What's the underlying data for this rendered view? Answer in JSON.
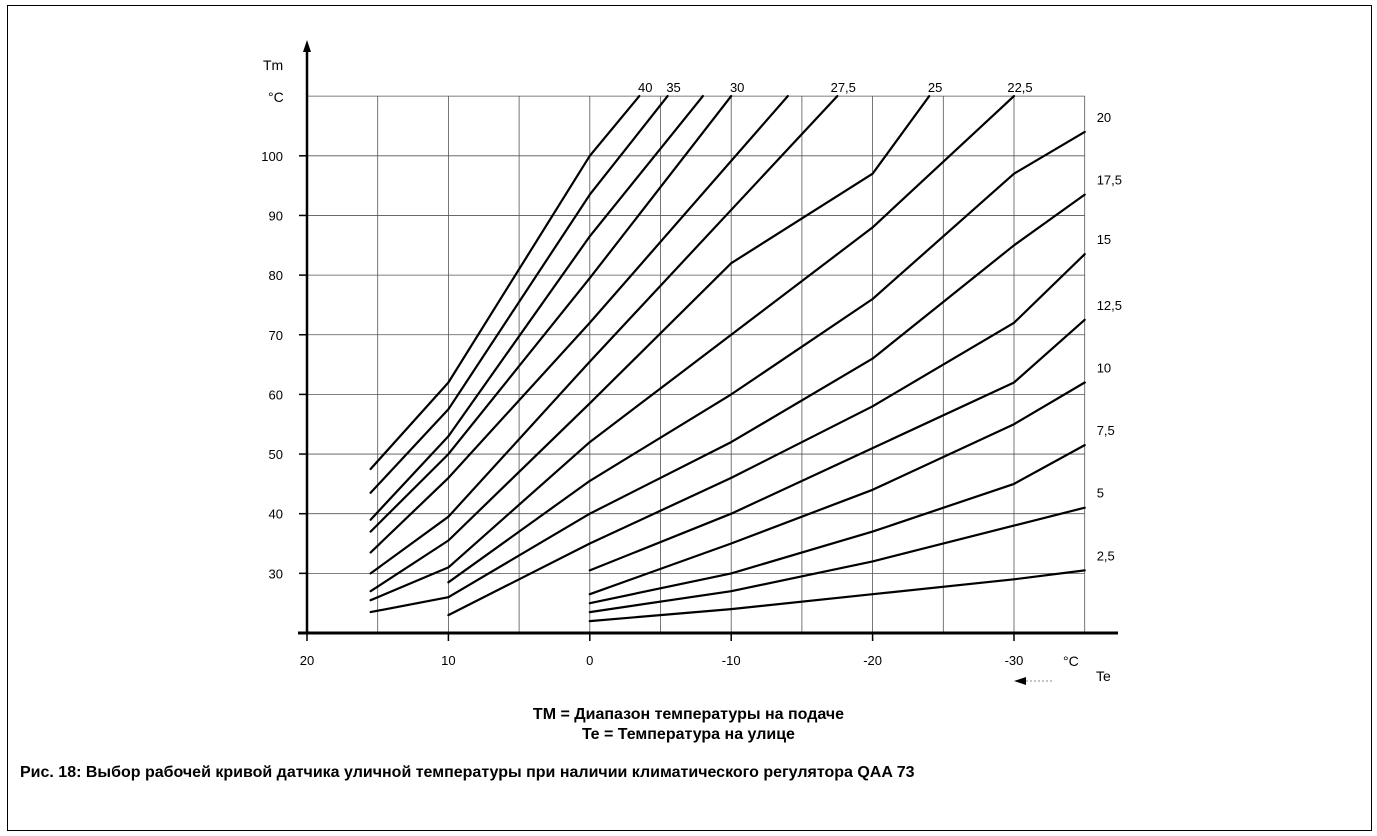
{
  "chart_data": {
    "type": "line",
    "ylabel": "Tm",
    "yunit": "°C",
    "xlabel": "Te",
    "xunit": "°C",
    "xlim": [
      20,
      -35
    ],
    "ylim": [
      20,
      110
    ],
    "x_ticks": [
      20,
      10,
      0,
      -10,
      -20,
      -30
    ],
    "x_tick_labels": [
      "20",
      "10",
      "0",
      "-10",
      "-20",
      "-30"
    ],
    "y_ticks": [
      30,
      40,
      50,
      60,
      70,
      80,
      90,
      100
    ],
    "y_tick_labels": [
      "30",
      "40",
      "50",
      "60",
      "70",
      "80",
      "90",
      "100"
    ],
    "grid": true,
    "series": [
      {
        "name": "40",
        "points": [
          [
            15.5,
            47.5
          ],
          [
            10,
            62
          ],
          [
            0,
            100
          ],
          [
            -3.5,
            110
          ]
        ]
      },
      {
        "name": "35",
        "points": [
          [
            15.5,
            43.5
          ],
          [
            10,
            57.5
          ],
          [
            0,
            93.5
          ],
          [
            -5.5,
            110
          ]
        ]
      },
      {
        "name": "",
        "points": [
          [
            15.5,
            39
          ],
          [
            10,
            53
          ],
          [
            0,
            86.5
          ],
          [
            -8,
            110
          ]
        ]
      },
      {
        "name": "30",
        "points": [
          [
            15.5,
            37
          ],
          [
            10,
            50
          ],
          [
            0,
            79.5
          ],
          [
            -10,
            110
          ]
        ]
      },
      {
        "name": "",
        "points": [
          [
            15.5,
            33.5
          ],
          [
            10,
            46
          ],
          [
            0,
            72
          ],
          [
            -14,
            110
          ]
        ]
      },
      {
        "name": "27,5",
        "points": [
          [
            15.5,
            30
          ],
          [
            10,
            39.5
          ],
          [
            0,
            65.5
          ],
          [
            -17.5,
            110
          ]
        ]
      },
      {
        "name": "25",
        "points": [
          [
            15.5,
            27
          ],
          [
            10,
            35.5
          ],
          [
            0,
            58.5
          ],
          [
            -10,
            82
          ],
          [
            -20,
            97
          ],
          [
            -24,
            110
          ]
        ]
      },
      {
        "name": "22,5",
        "points": [
          [
            15.5,
            25.5
          ],
          [
            10,
            31
          ],
          [
            0,
            52
          ],
          [
            -10,
            70
          ],
          [
            -20,
            88
          ],
          [
            -30,
            110
          ]
        ]
      },
      {
        "name": "20",
        "points": [
          [
            10,
            28.5
          ],
          [
            0,
            45.5
          ],
          [
            -10,
            60
          ],
          [
            -20,
            76
          ],
          [
            -30,
            97
          ],
          [
            -35,
            104
          ]
        ]
      },
      {
        "name": "17,5",
        "points": [
          [
            15.5,
            23.5
          ],
          [
            10,
            26
          ],
          [
            0,
            40
          ],
          [
            -10,
            52
          ],
          [
            -20,
            66
          ],
          [
            -30,
            85
          ],
          [
            -35,
            93.5
          ]
        ]
      },
      {
        "name": "15",
        "points": [
          [
            10,
            23
          ],
          [
            0,
            35
          ],
          [
            -10,
            46
          ],
          [
            -20,
            58
          ],
          [
            -30,
            72
          ],
          [
            -35,
            83.5
          ]
        ]
      },
      {
        "name": "12,5",
        "points": [
          [
            0,
            30.5
          ],
          [
            -10,
            40
          ],
          [
            -20,
            51
          ],
          [
            -30,
            62
          ],
          [
            -35,
            72.5
          ]
        ]
      },
      {
        "name": "10",
        "points": [
          [
            0,
            26.5
          ],
          [
            -10,
            35
          ],
          [
            -20,
            44
          ],
          [
            -30,
            55
          ],
          [
            -35,
            62
          ]
        ]
      },
      {
        "name": "7,5",
        "points": [
          [
            0,
            25
          ],
          [
            -10,
            30
          ],
          [
            -20,
            37
          ],
          [
            -30,
            45
          ],
          [
            -35,
            51.5
          ]
        ]
      },
      {
        "name": "5",
        "points": [
          [
            0,
            23.5
          ],
          [
            -10,
            27
          ],
          [
            -20,
            32
          ],
          [
            -30,
            38
          ],
          [
            -35,
            41
          ]
        ]
      },
      {
        "name": "2,5",
        "points": [
          [
            0,
            22
          ],
          [
            -10,
            24
          ],
          [
            -20,
            26.5
          ],
          [
            -30,
            29
          ],
          [
            -35,
            30.5
          ]
        ]
      }
    ]
  },
  "legend": {
    "line1": "TM = Диапазон температуры на подаче",
    "line2": "Te = Температура на улице"
  },
  "caption": "Рис. 18: Выбор рабочей кривой датчика уличной температуры при наличии климатического регулятора QAA 73"
}
